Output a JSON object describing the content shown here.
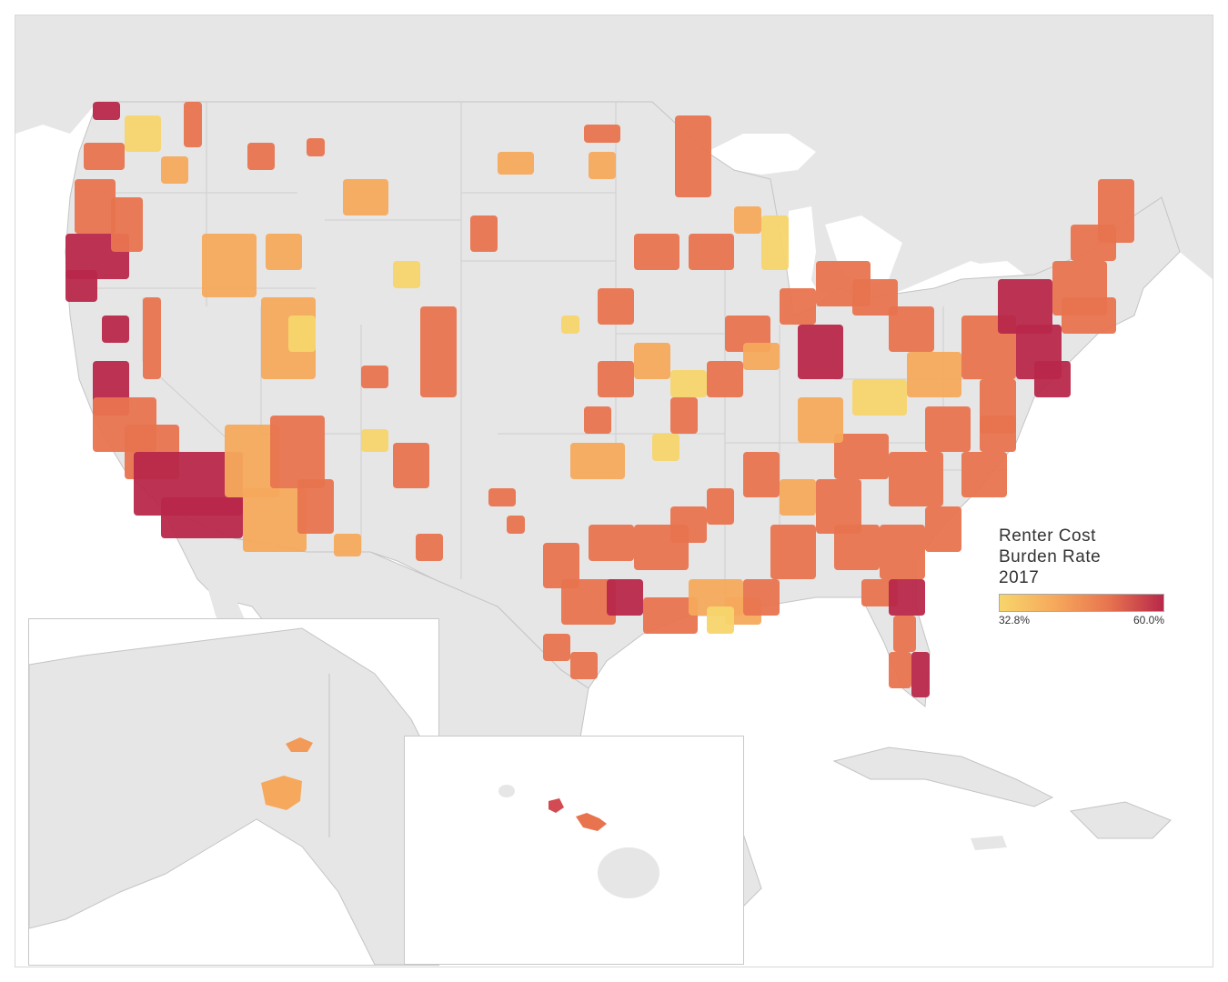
{
  "legend": {
    "title_line1": "Renter Cost",
    "title_line2": "Burden Rate",
    "title_line3": "2017",
    "min_label": "32.8%",
    "max_label": "60.0%"
  },
  "colors": {
    "land": "#e6e6e6",
    "water": "#ffffff",
    "border": "#c4c4c4",
    "scale_low": "#f7d56b",
    "scale_mid_low": "#f6a95c",
    "scale_mid_high": "#e8744f",
    "scale_high": "#b8284a"
  }
}
